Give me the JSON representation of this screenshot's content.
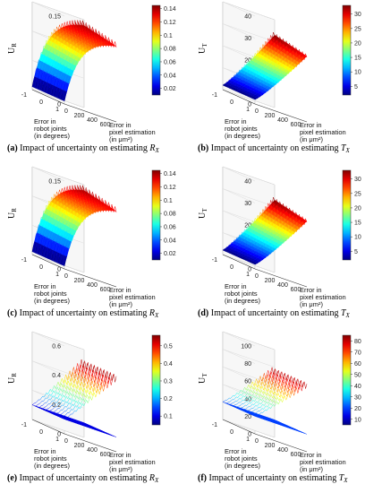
{
  "chart_data": [
    {
      "type": "surface",
      "id": "a",
      "caption_letter": "a",
      "caption_text": "Impact of uncertainty on estimating",
      "caption_symbol": "R",
      "caption_sub": "X",
      "zlabel": "U",
      "zlabel_sub": "R",
      "xlabel": [
        "Error in",
        "pixel estimation",
        "(in μm²)"
      ],
      "ylabel": [
        "Error in",
        "robot joints",
        "(in degrees)"
      ],
      "x_ticks": [
        "0",
        "200",
        "400",
        "600"
      ],
      "y_ticks": [
        "1",
        "0",
        "-1"
      ],
      "z_ticks": [
        "0",
        "0.05",
        "0.1",
        "0.15"
      ],
      "zlim": [
        0,
        0.15
      ],
      "colorbar_ticks": [
        "0.02",
        "0.04",
        "0.06",
        "0.08",
        "0.1",
        "0.12",
        "0.14"
      ],
      "colorbar_range": [
        0.01,
        0.145
      ],
      "surface_max": 0.14,
      "surface_min": 0.005,
      "surface_shape": "saturating",
      "flat_level": 0
    },
    {
      "type": "surface",
      "id": "b",
      "caption_letter": "b",
      "caption_text": "Impact of uncertainty on estimating",
      "caption_symbol": "T",
      "caption_sub": "X",
      "zlabel": "U",
      "zlabel_sub": "T",
      "xlabel": [
        "Error in",
        "pixel estimation",
        "(in μm²)"
      ],
      "ylabel": [
        "Error in",
        "robot joints",
        "(in degrees)"
      ],
      "x_ticks": [
        "0",
        "200",
        "400",
        "600"
      ],
      "y_ticks": [
        "1",
        "0",
        "-1"
      ],
      "z_ticks": [
        "0",
        "10",
        "20",
        "30",
        "40"
      ],
      "zlim": [
        0,
        40
      ],
      "colorbar_ticks": [
        "5",
        "10",
        "15",
        "20",
        "25",
        "30"
      ],
      "colorbar_range": [
        2,
        33
      ],
      "surface_max": 33,
      "surface_min": 2,
      "surface_shape": "linear",
      "flat_level": 0
    },
    {
      "type": "surface",
      "id": "c",
      "caption_letter": "c",
      "caption_text": "Impact of uncertainty on estimating",
      "caption_symbol": "R",
      "caption_sub": "X",
      "zlabel": "U",
      "zlabel_sub": "R",
      "xlabel": [
        "Error in",
        "pixel estimation",
        "(in μm²)"
      ],
      "ylabel": [
        "Error in",
        "robot joints",
        "(in degrees)"
      ],
      "x_ticks": [
        "0",
        "200",
        "400",
        "600"
      ],
      "y_ticks": [
        "1",
        "0",
        "-1"
      ],
      "z_ticks": [
        "0",
        "0.05",
        "0.1",
        "0.15"
      ],
      "zlim": [
        0,
        0.15
      ],
      "colorbar_ticks": [
        "0.02",
        "0.04",
        "0.06",
        "0.08",
        "0.1",
        "0.12",
        "0.14"
      ],
      "colorbar_range": [
        0.01,
        0.145
      ],
      "surface_max": 0.14,
      "surface_min": 0.005,
      "surface_shape": "saturating",
      "flat_level": 0
    },
    {
      "type": "surface",
      "id": "d",
      "caption_letter": "d",
      "caption_text": "Impact of uncertainty on estimating",
      "caption_symbol": "T",
      "caption_sub": "X",
      "zlabel": "U",
      "zlabel_sub": "T",
      "xlabel": [
        "Error in",
        "pixel estimation",
        "(in μm²)"
      ],
      "ylabel": [
        "Error in",
        "robot joints",
        "(in degrees)"
      ],
      "x_ticks": [
        "0",
        "200",
        "400",
        "600"
      ],
      "y_ticks": [
        "1",
        "0",
        "-1"
      ],
      "z_ticks": [
        "0",
        "10",
        "20",
        "30",
        "40"
      ],
      "zlim": [
        0,
        40
      ],
      "colorbar_ticks": [
        "5",
        "10",
        "15",
        "20",
        "25",
        "30"
      ],
      "colorbar_range": [
        2,
        33
      ],
      "surface_max": 33,
      "surface_min": 2,
      "surface_shape": "linear",
      "flat_level": 0
    },
    {
      "type": "surface",
      "id": "e",
      "caption_letter": "e",
      "caption_text": "Impact of uncertainty on estimating",
      "caption_symbol": "R",
      "caption_sub": "X",
      "zlabel": "U",
      "zlabel_sub": "R",
      "xlabel": [
        "Error in",
        "pixel estimation",
        "(in μm²)"
      ],
      "ylabel": [
        "Error in",
        "robot joints",
        "(in degrees)"
      ],
      "x_ticks": [
        "0",
        "200",
        "400",
        "600"
      ],
      "y_ticks": [
        "1",
        "0",
        "-1"
      ],
      "z_ticks": [
        "0",
        "0.2",
        "0.4",
        "0.6"
      ],
      "zlim": [
        0,
        0.6
      ],
      "colorbar_ticks": [
        "0.1",
        "0.2",
        "0.3",
        "0.4",
        "0.5"
      ],
      "colorbar_range": [
        0.05,
        0.56
      ],
      "surface_max": 0.55,
      "surface_min": 0.1,
      "surface_shape": "plane_with_curtain",
      "flat_level": 0.1
    },
    {
      "type": "surface",
      "id": "f",
      "caption_letter": "f",
      "caption_text": "Impact of uncertainty on estimating",
      "caption_symbol": "T",
      "caption_sub": "X",
      "zlabel": "U",
      "zlabel_sub": "T",
      "xlabel": [
        "Error in",
        "pixel estimation",
        "(in μm²)"
      ],
      "ylabel": [
        "Error in",
        "robot joints",
        "(in degrees)"
      ],
      "x_ticks": [
        "0",
        "200",
        "400",
        "600"
      ],
      "y_ticks": [
        "1",
        "0",
        "-1"
      ],
      "z_ticks": [
        "0",
        "20",
        "40",
        "60",
        "80",
        "100"
      ],
      "zlim": [
        0,
        100
      ],
      "colorbar_ticks": [
        "10",
        "20",
        "30",
        "40",
        "50",
        "60",
        "70",
        "80"
      ],
      "colorbar_range": [
        5,
        85
      ],
      "surface_max": 82,
      "surface_min": 10,
      "surface_shape": "plane_with_curtain",
      "flat_level": 20
    }
  ]
}
